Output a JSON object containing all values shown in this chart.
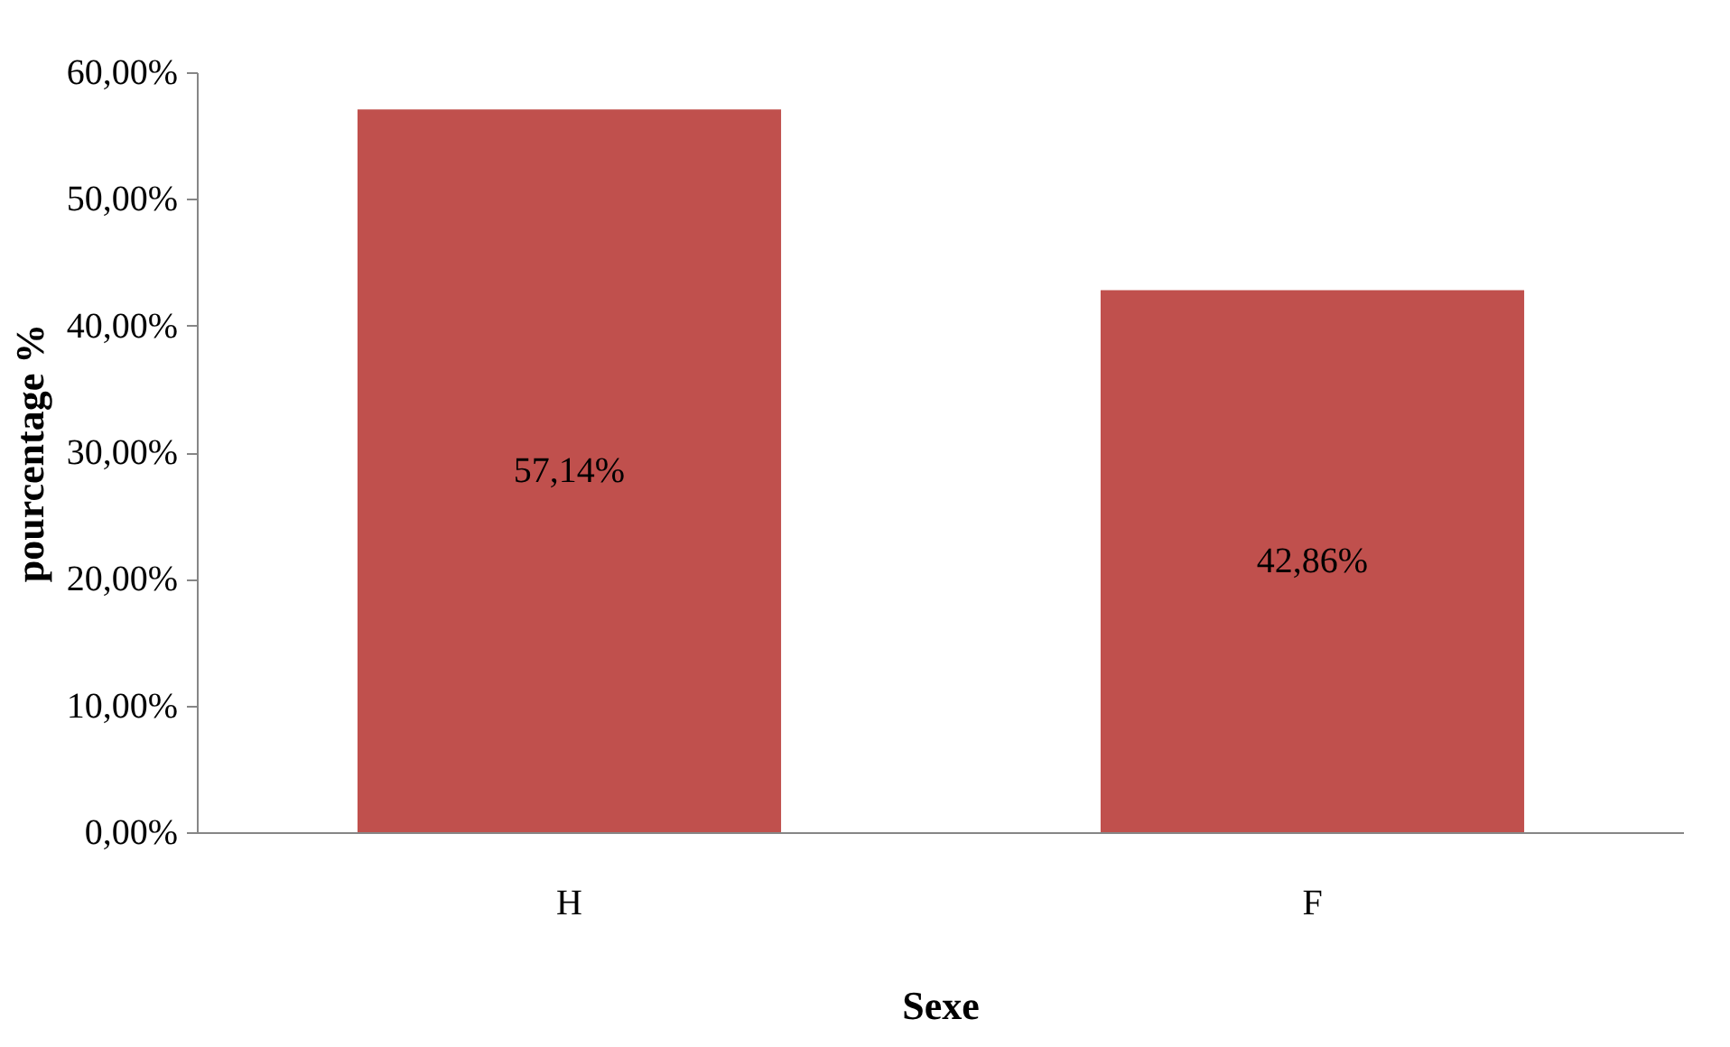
{
  "chart_data": {
    "type": "bar",
    "xlabel": "Sexe",
    "ylabel": "pourcentage %",
    "categories": [
      "H",
      "F"
    ],
    "values": [
      57.14,
      42.86
    ],
    "value_labels": [
      "57,14%",
      "42,86%"
    ],
    "color": "#c0504d",
    "ylim": [
      0,
      60
    ],
    "yticks": [
      {
        "value": 0,
        "label": "0,00%"
      },
      {
        "value": 10,
        "label": "10,00%"
      },
      {
        "value": 20,
        "label": "20,00%"
      },
      {
        "value": 30,
        "label": "30,00%"
      },
      {
        "value": 40,
        "label": "40,00%"
      },
      {
        "value": 50,
        "label": "50,00%"
      },
      {
        "value": 60,
        "label": "60,00%"
      }
    ],
    "grid": false
  }
}
